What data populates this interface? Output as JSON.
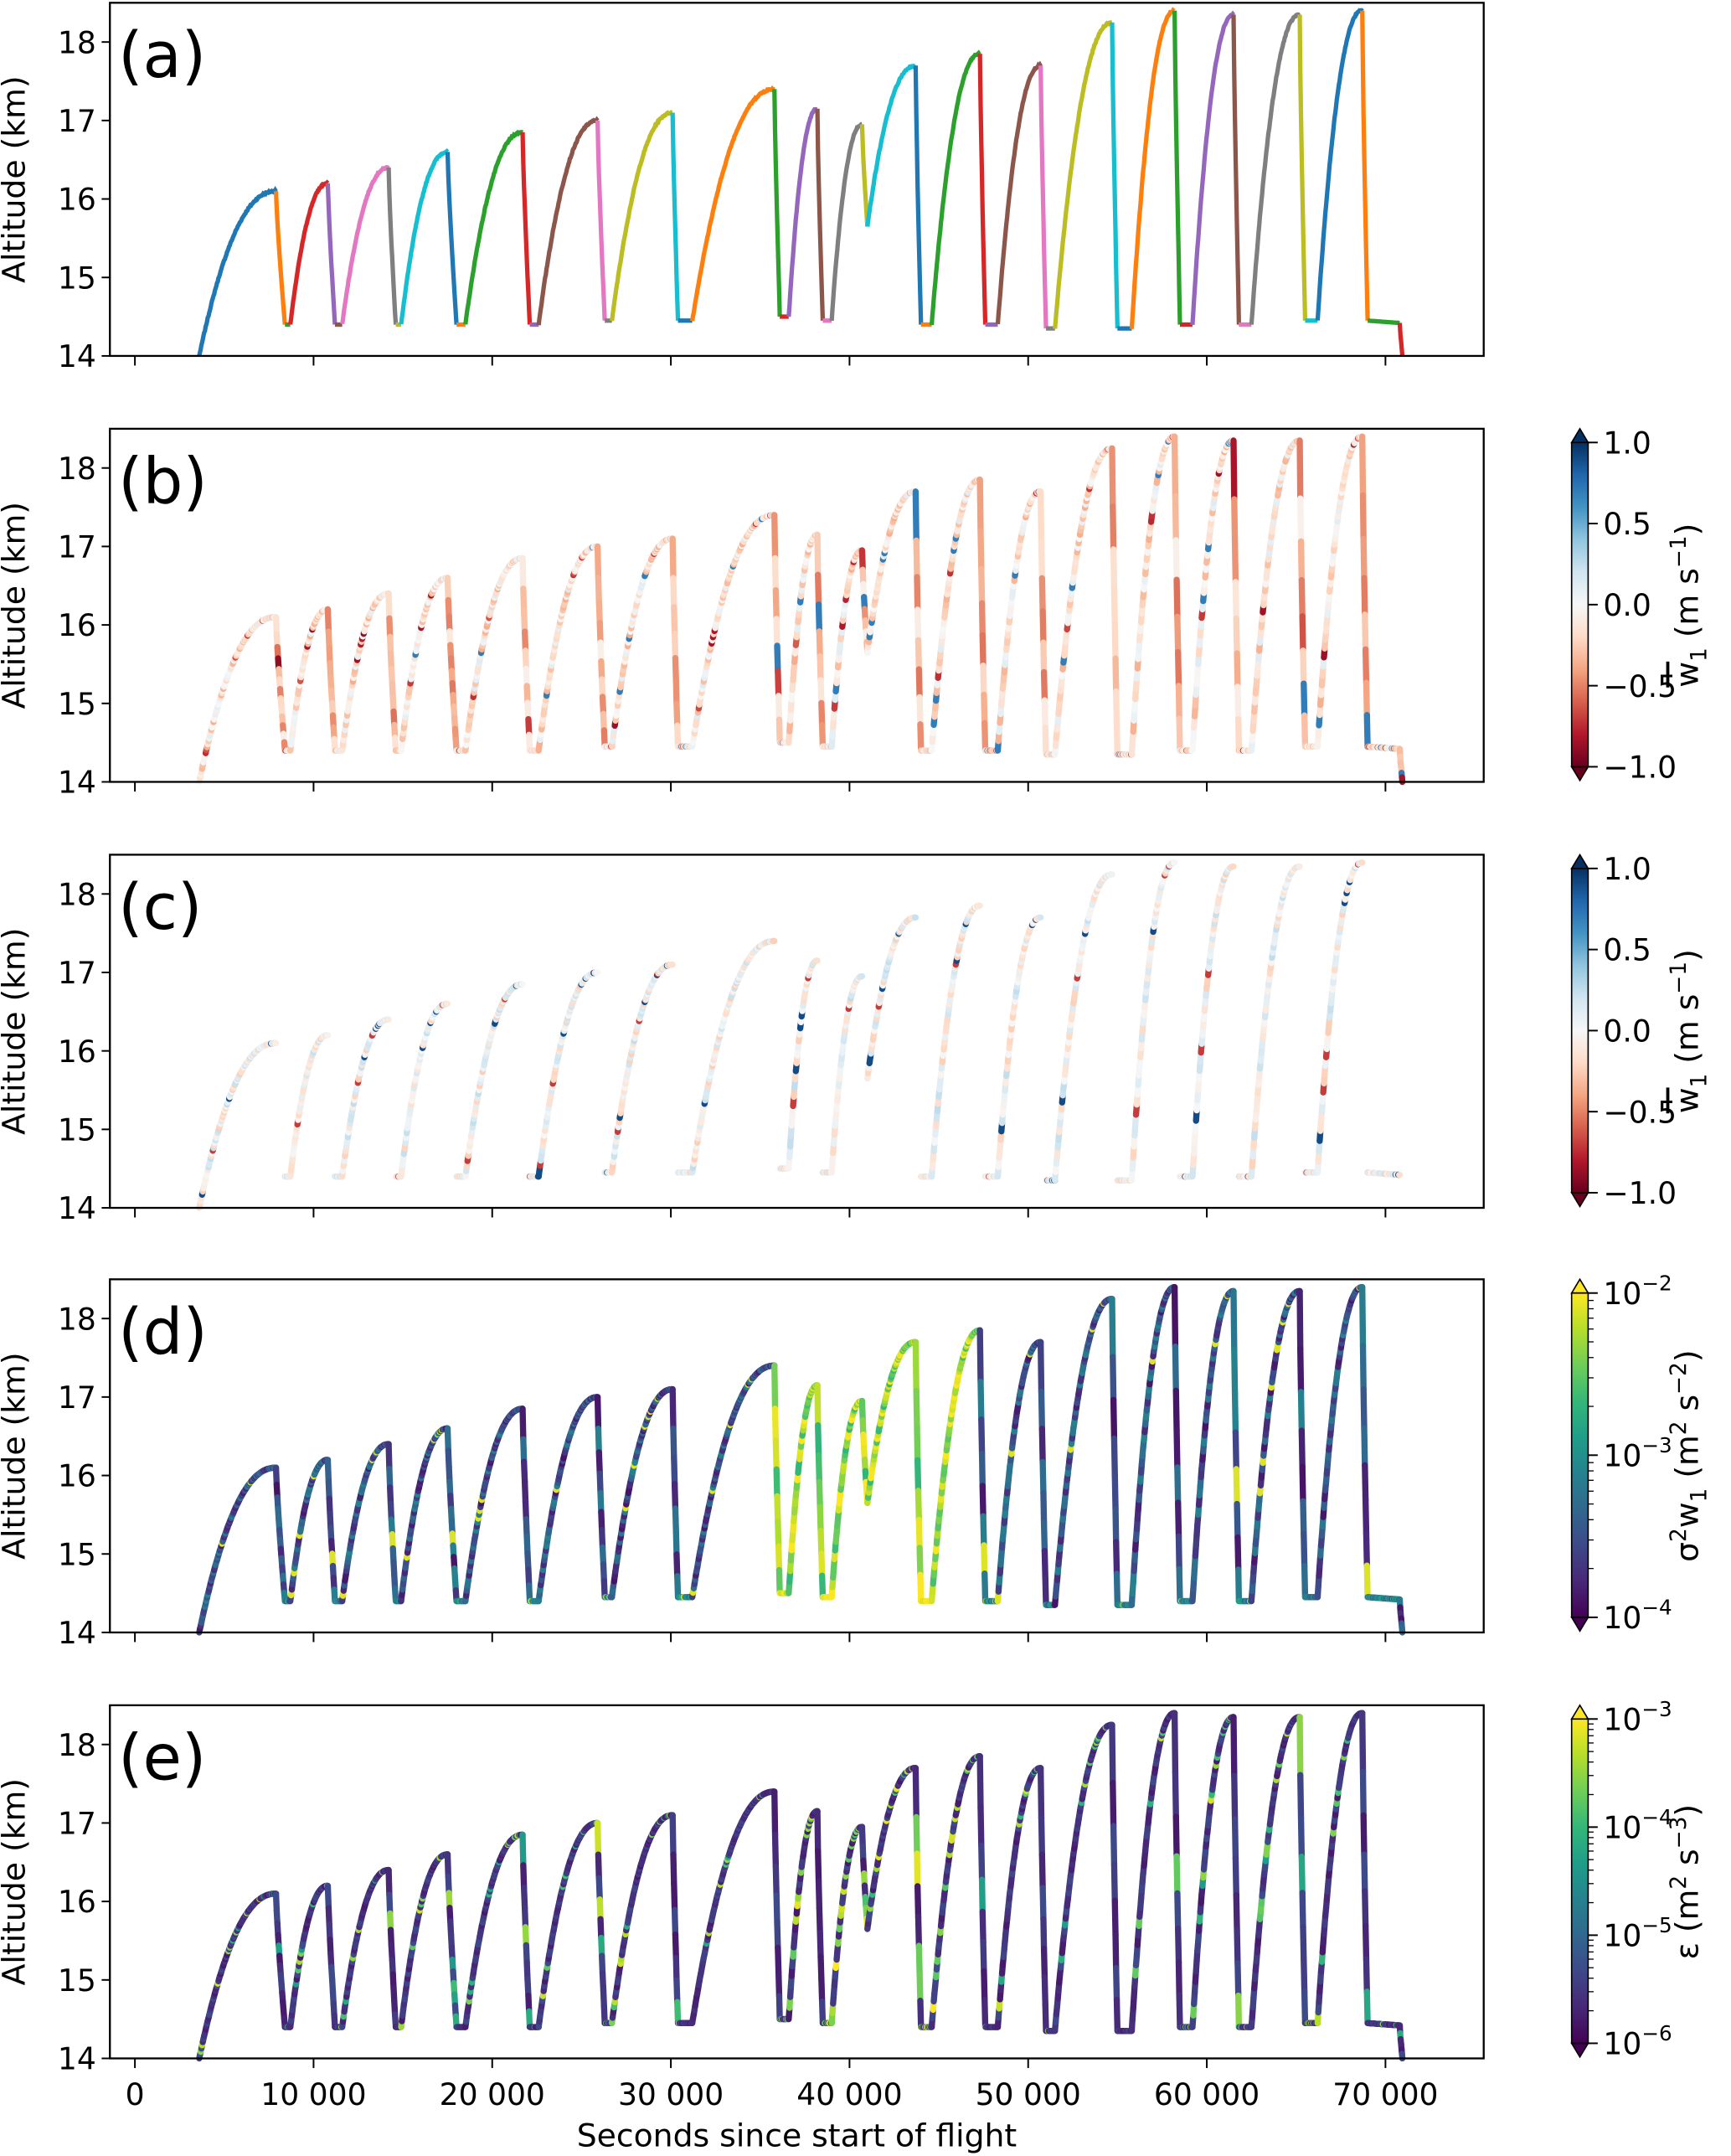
{
  "chart_data": {
    "type": "line",
    "xlabel": "Seconds since start of flight",
    "ylabel": "Altitude (km)",
    "xlim": [
      -1400,
      75500
    ],
    "ylim": [
      14,
      18.5
    ],
    "xticks": [
      0,
      10000,
      20000,
      30000,
      40000,
      50000,
      60000,
      70000
    ],
    "xtick_labels": [
      "0",
      "10 000",
      "20 000",
      "30 000",
      "40 000",
      "50 000",
      "60 000",
      "70 000"
    ],
    "yticks": [
      14,
      15,
      16,
      17,
      18
    ],
    "ytick_labels": [
      "14",
      "15",
      "16",
      "17",
      "18"
    ],
    "grid": false,
    "leg_palette": [
      "#1f77b4",
      "#ff7f0e",
      "#2ca02c",
      "#d62728",
      "#9467bd",
      "#8c564b",
      "#e377c2",
      "#7f7f7f",
      "#bcbd22",
      "#17becf"
    ],
    "legs": [
      {
        "kind": "ascent",
        "t": [
          3600,
          7900
        ],
        "alt": [
          14.0,
          16.1
        ]
      },
      {
        "kind": "descent",
        "t": [
          7900,
          8400
        ],
        "alt": [
          16.1,
          14.4
        ]
      },
      {
        "kind": "level",
        "t": [
          8400,
          8700
        ],
        "alt": [
          14.4,
          14.4
        ]
      },
      {
        "kind": "ascent",
        "t": [
          8700,
          10800
        ],
        "alt": [
          14.4,
          16.2
        ]
      },
      {
        "kind": "descent",
        "t": [
          10800,
          11200
        ],
        "alt": [
          16.2,
          14.4
        ]
      },
      {
        "kind": "level",
        "t": [
          11200,
          11600
        ],
        "alt": [
          14.4,
          14.4
        ]
      },
      {
        "kind": "ascent",
        "t": [
          11600,
          14200
        ],
        "alt": [
          14.4,
          16.4
        ]
      },
      {
        "kind": "descent",
        "t": [
          14200,
          14600
        ],
        "alt": [
          16.4,
          14.4
        ]
      },
      {
        "kind": "level",
        "t": [
          14600,
          14900
        ],
        "alt": [
          14.4,
          14.4
        ]
      },
      {
        "kind": "ascent",
        "t": [
          14900,
          17500
        ],
        "alt": [
          14.4,
          16.6
        ]
      },
      {
        "kind": "descent",
        "t": [
          17500,
          18000
        ],
        "alt": [
          16.6,
          14.4
        ]
      },
      {
        "kind": "level",
        "t": [
          18000,
          18500
        ],
        "alt": [
          14.4,
          14.4
        ]
      },
      {
        "kind": "ascent",
        "t": [
          18500,
          21700
        ],
        "alt": [
          14.4,
          16.85
        ]
      },
      {
        "kind": "descent",
        "t": [
          21700,
          22100
        ],
        "alt": [
          16.85,
          14.4
        ]
      },
      {
        "kind": "level",
        "t": [
          22100,
          22600
        ],
        "alt": [
          14.4,
          14.4
        ]
      },
      {
        "kind": "ascent",
        "t": [
          22600,
          25900
        ],
        "alt": [
          14.4,
          17.0
        ]
      },
      {
        "kind": "descent",
        "t": [
          25900,
          26300
        ],
        "alt": [
          17.0,
          14.45
        ]
      },
      {
        "kind": "level",
        "t": [
          26300,
          26700
        ],
        "alt": [
          14.45,
          14.45
        ]
      },
      {
        "kind": "ascent",
        "t": [
          26700,
          30100
        ],
        "alt": [
          14.45,
          17.1
        ]
      },
      {
        "kind": "descent",
        "t": [
          30100,
          30400
        ],
        "alt": [
          17.1,
          14.45
        ]
      },
      {
        "kind": "level",
        "t": [
          30400,
          31200
        ],
        "alt": [
          14.45,
          14.45
        ]
      },
      {
        "kind": "ascent",
        "t": [
          31200,
          35800
        ],
        "alt": [
          14.45,
          17.4
        ]
      },
      {
        "kind": "descent",
        "t": [
          35800,
          36100
        ],
        "alt": [
          17.4,
          14.5
        ]
      },
      {
        "kind": "level",
        "t": [
          36100,
          36600
        ],
        "alt": [
          14.5,
          14.5
        ]
      },
      {
        "kind": "ascent",
        "t": [
          36600,
          38200
        ],
        "alt": [
          14.5,
          17.15
        ]
      },
      {
        "kind": "descent",
        "t": [
          38200,
          38500
        ],
        "alt": [
          17.15,
          14.45
        ]
      },
      {
        "kind": "level",
        "t": [
          38500,
          39000
        ],
        "alt": [
          14.45,
          14.45
        ]
      },
      {
        "kind": "ascent",
        "t": [
          39000,
          40700
        ],
        "alt": [
          14.45,
          16.95
        ]
      },
      {
        "kind": "descent",
        "t": [
          40700,
          41000
        ],
        "alt": [
          16.95,
          15.65
        ]
      },
      {
        "kind": "ascent",
        "t": [
          41000,
          43700
        ],
        "alt": [
          15.65,
          17.7
        ]
      },
      {
        "kind": "descent",
        "t": [
          43700,
          44000
        ],
        "alt": [
          17.7,
          14.4
        ]
      },
      {
        "kind": "level",
        "t": [
          44000,
          44600
        ],
        "alt": [
          14.4,
          14.4
        ]
      },
      {
        "kind": "ascent",
        "t": [
          44600,
          47300
        ],
        "alt": [
          14.4,
          17.85
        ]
      },
      {
        "kind": "descent",
        "t": [
          47300,
          47600
        ],
        "alt": [
          17.85,
          14.4
        ]
      },
      {
        "kind": "level",
        "t": [
          47600,
          48300
        ],
        "alt": [
          14.4,
          14.4
        ]
      },
      {
        "kind": "ascent",
        "t": [
          48300,
          50700
        ],
        "alt": [
          14.4,
          17.7
        ]
      },
      {
        "kind": "descent",
        "t": [
          50700,
          51000
        ],
        "alt": [
          17.7,
          14.35
        ]
      },
      {
        "kind": "level",
        "t": [
          51000,
          51500
        ],
        "alt": [
          14.35,
          14.35
        ]
      },
      {
        "kind": "ascent",
        "t": [
          51500,
          54700
        ],
        "alt": [
          14.35,
          18.25
        ]
      },
      {
        "kind": "descent",
        "t": [
          54700,
          55000
        ],
        "alt": [
          18.25,
          14.35
        ]
      },
      {
        "kind": "level",
        "t": [
          55000,
          55800
        ],
        "alt": [
          14.35,
          14.35
        ]
      },
      {
        "kind": "ascent",
        "t": [
          55800,
          58200
        ],
        "alt": [
          14.35,
          18.4
        ]
      },
      {
        "kind": "descent",
        "t": [
          58200,
          58500
        ],
        "alt": [
          18.4,
          14.4
        ]
      },
      {
        "kind": "level",
        "t": [
          58500,
          59200
        ],
        "alt": [
          14.4,
          14.4
        ]
      },
      {
        "kind": "ascent",
        "t": [
          59200,
          61500
        ],
        "alt": [
          14.4,
          18.35
        ]
      },
      {
        "kind": "descent",
        "t": [
          61500,
          61800
        ],
        "alt": [
          18.35,
          14.4
        ]
      },
      {
        "kind": "level",
        "t": [
          61800,
          62500
        ],
        "alt": [
          14.4,
          14.4
        ]
      },
      {
        "kind": "ascent",
        "t": [
          62500,
          65200
        ],
        "alt": [
          14.4,
          18.35
        ]
      },
      {
        "kind": "descent",
        "t": [
          65200,
          65500
        ],
        "alt": [
          18.35,
          14.45
        ]
      },
      {
        "kind": "level",
        "t": [
          65500,
          66200
        ],
        "alt": [
          14.45,
          14.45
        ]
      },
      {
        "kind": "ascent",
        "t": [
          66200,
          68700
        ],
        "alt": [
          14.45,
          18.4
        ]
      },
      {
        "kind": "descent",
        "t": [
          68700,
          69000
        ],
        "alt": [
          18.4,
          14.45
        ]
      },
      {
        "kind": "level",
        "t": [
          69000,
          70800
        ],
        "alt": [
          14.45,
          14.42
        ]
      },
      {
        "kind": "descent",
        "t": [
          70800,
          70950
        ],
        "alt": [
          14.42,
          14.0
        ]
      }
    ],
    "panels": [
      {
        "letter": "(a)",
        "coloring": "leg"
      },
      {
        "letter": "(b)",
        "coloring": "w_mean",
        "cmap": "RdBu",
        "clim": [
          -1,
          1
        ],
        "scale": "linear",
        "cbar_ticks": [
          {
            "v": 1,
            "label": "1.0"
          },
          {
            "v": 0.5,
            "label": "0.5"
          },
          {
            "v": 0,
            "label": "0.0"
          },
          {
            "v": -0.5,
            "label": "−0.5"
          },
          {
            "v": -1,
            "label": "−1.0"
          }
        ],
        "cbar_label": [
          {
            "t": "w",
            "s": "over"
          },
          {
            "t": "1",
            "s": "sub"
          },
          {
            "t": " (m s",
            "s": ""
          },
          {
            "t": "−1",
            "s": "sup"
          },
          {
            "t": ")",
            "s": ""
          }
        ]
      },
      {
        "letter": "(c)",
        "coloring": "w_mean_ascents",
        "cmap": "RdBu",
        "clim": [
          -1,
          1
        ],
        "scale": "linear",
        "cbar_ticks": [
          {
            "v": 1,
            "label": "1.0"
          },
          {
            "v": 0.5,
            "label": "0.5"
          },
          {
            "v": 0,
            "label": "0.0"
          },
          {
            "v": -0.5,
            "label": "−0.5"
          },
          {
            "v": -1,
            "label": "−1.0"
          }
        ],
        "cbar_label": [
          {
            "t": "w",
            "s": "over"
          },
          {
            "t": "1",
            "s": "sub"
          },
          {
            "t": " (m s",
            "s": ""
          },
          {
            "t": "−1",
            "s": "sup"
          },
          {
            "t": ")",
            "s": ""
          }
        ]
      },
      {
        "letter": "(d)",
        "coloring": "w_variance",
        "cmap": "viridis",
        "clim": [
          0.0001,
          0.01
        ],
        "scale": "log",
        "cbar_ticks": [
          {
            "v": -2,
            "base": "10",
            "exp": "−2"
          },
          {
            "v": -3,
            "base": "10",
            "exp": "−3"
          },
          {
            "v": -4,
            "base": "10",
            "exp": "−4"
          }
        ],
        "cbar_label": [
          {
            "t": "σ",
            "s": ""
          },
          {
            "t": "2",
            "s": "sup"
          },
          {
            "t": "w",
            "s": ""
          },
          {
            "t": "1",
            "s": "sub"
          },
          {
            "t": " (m",
            "s": ""
          },
          {
            "t": "2",
            "s": "sup"
          },
          {
            "t": " s",
            "s": ""
          },
          {
            "t": "−2",
            "s": "sup"
          },
          {
            "t": ")",
            "s": ""
          }
        ]
      },
      {
        "letter": "(e)",
        "coloring": "epsilon",
        "cmap": "viridis",
        "clim": [
          1e-06,
          0.001
        ],
        "scale": "log",
        "cbar_ticks": [
          {
            "v": -3,
            "base": "10",
            "exp": "−3"
          },
          {
            "v": -4,
            "base": "10",
            "exp": "−4"
          },
          {
            "v": -5,
            "base": "10",
            "exp": "−5"
          },
          {
            "v": -6,
            "base": "10",
            "exp": "−6"
          }
        ],
        "cbar_label": [
          {
            "t": "ε",
            "s": ""
          },
          {
            "t": " (m",
            "s": ""
          },
          {
            "t": "2",
            "s": "sup"
          },
          {
            "t": " s",
            "s": ""
          },
          {
            "t": "−3",
            "s": "sup"
          },
          {
            "t": ")",
            "s": ""
          }
        ]
      }
    ]
  }
}
